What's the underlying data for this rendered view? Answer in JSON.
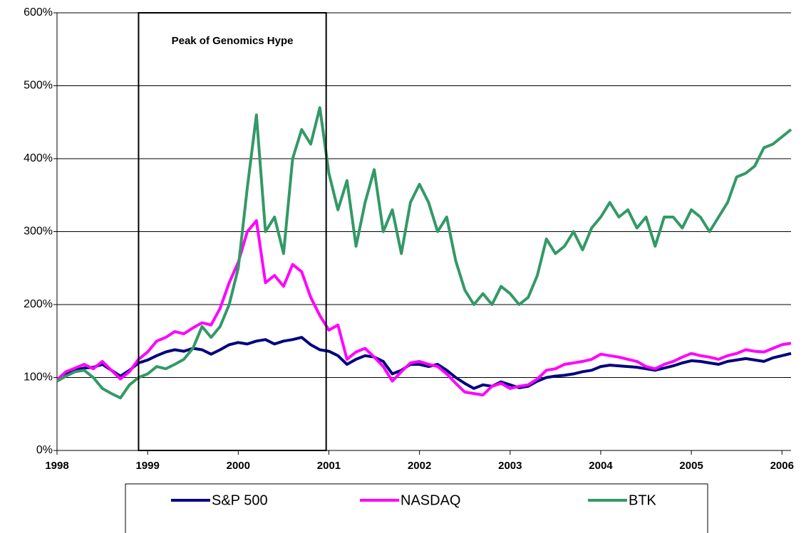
{
  "chart_data": {
    "type": "line",
    "annotation": {
      "text": "Peak of Genomics Hype",
      "x_range": [
        1998.9,
        2000.97
      ]
    },
    "x": [
      1998.0,
      1998.1,
      1998.2,
      1998.3,
      1998.4,
      1998.5,
      1998.6,
      1998.7,
      1998.8,
      1998.9,
      1999.0,
      1999.1,
      1999.2,
      1999.3,
      1999.4,
      1999.5,
      1999.6,
      1999.7,
      1999.8,
      1999.9,
      2000.0,
      2000.1,
      2000.2,
      2000.3,
      2000.4,
      2000.5,
      2000.6,
      2000.7,
      2000.8,
      2000.9,
      2001.0,
      2001.1,
      2001.2,
      2001.3,
      2001.4,
      2001.5,
      2001.6,
      2001.7,
      2001.8,
      2001.9,
      2002.0,
      2002.1,
      2002.2,
      2002.3,
      2002.4,
      2002.5,
      2002.6,
      2002.7,
      2002.8,
      2002.9,
      2003.0,
      2003.1,
      2003.2,
      2003.3,
      2003.4,
      2003.5,
      2003.6,
      2003.7,
      2003.8,
      2003.9,
      2004.0,
      2004.1,
      2004.2,
      2004.3,
      2004.4,
      2004.5,
      2004.6,
      2004.7,
      2004.8,
      2004.9,
      2005.0,
      2005.1,
      2005.2,
      2005.3,
      2005.4,
      2005.5,
      2005.6,
      2005.7,
      2005.8,
      2005.9,
      2006.0,
      2006.1
    ],
    "series": [
      {
        "name": "S&P 500",
        "color": "#000080",
        "values": [
          97,
          105,
          110,
          113,
          114,
          118,
          110,
          102,
          110,
          120,
          124,
          130,
          135,
          138,
          136,
          140,
          138,
          132,
          138,
          145,
          148,
          146,
          150,
          152,
          146,
          150,
          152,
          155,
          145,
          138,
          136,
          130,
          118,
          125,
          130,
          128,
          122,
          105,
          110,
          118,
          118,
          115,
          118,
          110,
          100,
          92,
          85,
          90,
          88,
          94,
          90,
          86,
          88,
          95,
          100,
          102,
          103,
          105,
          108,
          110,
          115,
          117,
          116,
          115,
          114,
          112,
          110,
          113,
          116,
          120,
          123,
          122,
          120,
          118,
          122,
          124,
          126,
          124,
          122,
          127,
          130,
          133
        ]
      },
      {
        "name": "NASDAQ",
        "color": "#ff00ff",
        "values": [
          97,
          108,
          113,
          118,
          112,
          122,
          110,
          98,
          108,
          125,
          135,
          150,
          155,
          163,
          160,
          168,
          175,
          172,
          195,
          230,
          258,
          300,
          315,
          230,
          240,
          225,
          255,
          245,
          210,
          185,
          165,
          172,
          125,
          135,
          140,
          128,
          115,
          95,
          108,
          120,
          122,
          118,
          115,
          105,
          92,
          80,
          78,
          76,
          88,
          92,
          85,
          88,
          90,
          98,
          110,
          112,
          118,
          120,
          122,
          125,
          132,
          130,
          128,
          125,
          122,
          115,
          112,
          118,
          122,
          128,
          133,
          130,
          128,
          125,
          130,
          133,
          138,
          136,
          135,
          140,
          145,
          147
        ]
      },
      {
        "name": "BTK",
        "color": "#339966",
        "values": [
          95,
          102,
          108,
          110,
          100,
          85,
          78,
          72,
          90,
          100,
          105,
          115,
          112,
          118,
          125,
          140,
          170,
          155,
          170,
          200,
          250,
          360,
          460,
          300,
          320,
          270,
          400,
          440,
          420,
          470,
          380,
          330,
          370,
          280,
          340,
          385,
          300,
          330,
          270,
          340,
          365,
          340,
          300,
          320,
          260,
          220,
          200,
          215,
          200,
          225,
          215,
          200,
          210,
          240,
          290,
          270,
          280,
          300,
          275,
          305,
          320,
          340,
          320,
          330,
          305,
          320,
          280,
          320,
          320,
          305,
          330,
          320,
          300,
          320,
          340,
          375,
          380,
          390,
          415,
          420,
          430,
          440
        ]
      }
    ],
    "xlim": [
      1998,
      2006.1
    ],
    "xticks": [
      1998,
      1999,
      2000,
      2001,
      2002,
      2003,
      2004,
      2005,
      2006
    ],
    "ylim": [
      0,
      600
    ],
    "yticks": [
      {
        "value": 0,
        "label": "0%"
      },
      {
        "value": 100,
        "label": "100%"
      },
      {
        "value": 200,
        "label": "200%"
      },
      {
        "value": 300,
        "label": "300%"
      },
      {
        "value": 400,
        "label": "400%"
      },
      {
        "value": 500,
        "label": "500%"
      },
      {
        "value": 600,
        "label": "600%"
      }
    ],
    "grid": true
  }
}
